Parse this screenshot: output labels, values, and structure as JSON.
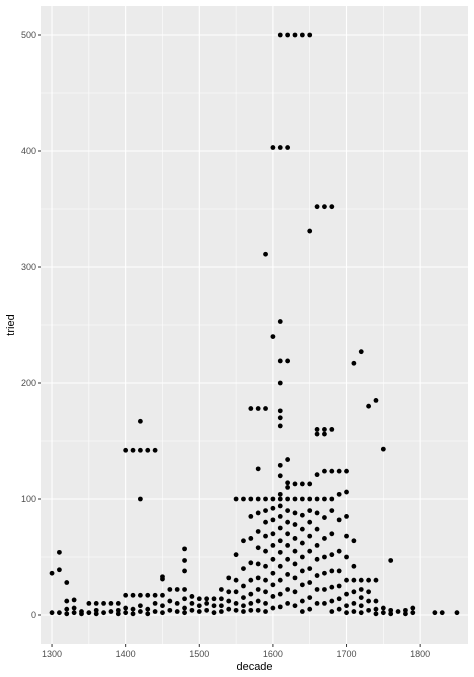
{
  "chart_data": {
    "type": "scatter",
    "xlabel": "decade",
    "ylabel": "tried",
    "xlim": [
      1285,
      1865
    ],
    "ylim": [
      -25,
      525
    ],
    "xticks": [
      1300,
      1400,
      1500,
      1600,
      1700,
      1800
    ],
    "yticks": [
      0,
      100,
      200,
      300,
      400,
      500
    ],
    "x_tick_labels": [
      "1300",
      "1400",
      "1500",
      "1600",
      "1700",
      "1800"
    ],
    "y_tick_labels": [
      "0",
      "100",
      "200",
      "300",
      "400",
      "500"
    ],
    "grid": true,
    "legend": "none",
    "colors": {
      "panel": "#ebebeb",
      "grid": "#ffffff",
      "point": "#000000"
    },
    "points": [
      [
        1300,
        36
      ],
      [
        1300,
        2
      ],
      [
        1310,
        54
      ],
      [
        1310,
        39
      ],
      [
        1310,
        2
      ],
      [
        1320,
        28
      ],
      [
        1320,
        12
      ],
      [
        1320,
        5
      ],
      [
        1320,
        1
      ],
      [
        1330,
        13
      ],
      [
        1330,
        6
      ],
      [
        1330,
        2
      ],
      [
        1340,
        3
      ],
      [
        1340,
        1
      ],
      [
        1350,
        10
      ],
      [
        1350,
        2
      ],
      [
        1360,
        10
      ],
      [
        1360,
        4
      ],
      [
        1360,
        1
      ],
      [
        1370,
        10
      ],
      [
        1370,
        2
      ],
      [
        1380,
        10
      ],
      [
        1380,
        3
      ],
      [
        1390,
        10
      ],
      [
        1390,
        4
      ],
      [
        1390,
        1
      ],
      [
        1400,
        142
      ],
      [
        1400,
        17
      ],
      [
        1400,
        6
      ],
      [
        1400,
        2
      ],
      [
        1410,
        142
      ],
      [
        1410,
        17
      ],
      [
        1410,
        5
      ],
      [
        1410,
        1
      ],
      [
        1420,
        167
      ],
      [
        1420,
        142
      ],
      [
        1420,
        100
      ],
      [
        1420,
        17
      ],
      [
        1420,
        8
      ],
      [
        1420,
        3
      ],
      [
        1430,
        142
      ],
      [
        1430,
        17
      ],
      [
        1430,
        5
      ],
      [
        1430,
        1
      ],
      [
        1440,
        142
      ],
      [
        1440,
        17
      ],
      [
        1440,
        10
      ],
      [
        1440,
        3
      ],
      [
        1450,
        33
      ],
      [
        1450,
        31
      ],
      [
        1450,
        17
      ],
      [
        1450,
        8
      ],
      [
        1450,
        2
      ],
      [
        1460,
        22
      ],
      [
        1460,
        12
      ],
      [
        1460,
        4
      ],
      [
        1470,
        22
      ],
      [
        1470,
        10
      ],
      [
        1470,
        3
      ],
      [
        1480,
        57
      ],
      [
        1480,
        47
      ],
      [
        1480,
        38
      ],
      [
        1480,
        22
      ],
      [
        1480,
        14
      ],
      [
        1480,
        6
      ],
      [
        1480,
        2
      ],
      [
        1490,
        16
      ],
      [
        1490,
        10
      ],
      [
        1490,
        4
      ],
      [
        1500,
        14
      ],
      [
        1500,
        8
      ],
      [
        1500,
        3
      ],
      [
        1510,
        14
      ],
      [
        1510,
        10
      ],
      [
        1510,
        4
      ],
      [
        1520,
        14
      ],
      [
        1520,
        8
      ],
      [
        1520,
        2
      ],
      [
        1530,
        22
      ],
      [
        1530,
        14
      ],
      [
        1530,
        8
      ],
      [
        1530,
        3
      ],
      [
        1540,
        32
      ],
      [
        1540,
        20
      ],
      [
        1540,
        12
      ],
      [
        1540,
        5
      ],
      [
        1550,
        100
      ],
      [
        1550,
        52
      ],
      [
        1550,
        30
      ],
      [
        1550,
        20
      ],
      [
        1550,
        10
      ],
      [
        1550,
        4
      ],
      [
        1560,
        100
      ],
      [
        1560,
        64
      ],
      [
        1560,
        40
      ],
      [
        1560,
        25
      ],
      [
        1560,
        15
      ],
      [
        1560,
        8
      ],
      [
        1560,
        3
      ],
      [
        1570,
        178
      ],
      [
        1570,
        100
      ],
      [
        1570,
        85
      ],
      [
        1570,
        66
      ],
      [
        1570,
        45
      ],
      [
        1570,
        30
      ],
      [
        1570,
        18
      ],
      [
        1570,
        10
      ],
      [
        1570,
        4
      ],
      [
        1580,
        178
      ],
      [
        1580,
        126
      ],
      [
        1580,
        100
      ],
      [
        1580,
        88
      ],
      [
        1580,
        72
      ],
      [
        1580,
        58
      ],
      [
        1580,
        44
      ],
      [
        1580,
        32
      ],
      [
        1580,
        22
      ],
      [
        1580,
        12
      ],
      [
        1580,
        4
      ],
      [
        1590,
        311
      ],
      [
        1590,
        178
      ],
      [
        1590,
        100
      ],
      [
        1590,
        90
      ],
      [
        1590,
        80
      ],
      [
        1590,
        68
      ],
      [
        1590,
        55
      ],
      [
        1590,
        42
      ],
      [
        1590,
        30
      ],
      [
        1590,
        20
      ],
      [
        1590,
        10
      ],
      [
        1590,
        3
      ],
      [
        1600,
        403
      ],
      [
        1600,
        240
      ],
      [
        1600,
        100
      ],
      [
        1600,
        92
      ],
      [
        1600,
        82
      ],
      [
        1600,
        70
      ],
      [
        1600,
        60
      ],
      [
        1600,
        48
      ],
      [
        1600,
        36
      ],
      [
        1600,
        26
      ],
      [
        1600,
        16
      ],
      [
        1600,
        6
      ],
      [
        1610,
        500
      ],
      [
        1610,
        403
      ],
      [
        1610,
        253
      ],
      [
        1610,
        219
      ],
      [
        1610,
        200
      ],
      [
        1610,
        176
      ],
      [
        1610,
        170
      ],
      [
        1610,
        163
      ],
      [
        1610,
        129
      ],
      [
        1610,
        120
      ],
      [
        1610,
        104
      ],
      [
        1610,
        100
      ],
      [
        1610,
        94
      ],
      [
        1610,
        85
      ],
      [
        1610,
        75
      ],
      [
        1610,
        64
      ],
      [
        1610,
        54
      ],
      [
        1610,
        42
      ],
      [
        1610,
        30
      ],
      [
        1610,
        18
      ],
      [
        1610,
        7
      ],
      [
        1620,
        500
      ],
      [
        1620,
        403
      ],
      [
        1620,
        219
      ],
      [
        1620,
        134
      ],
      [
        1620,
        114
      ],
      [
        1620,
        110
      ],
      [
        1620,
        100
      ],
      [
        1620,
        90
      ],
      [
        1620,
        80
      ],
      [
        1620,
        70
      ],
      [
        1620,
        60
      ],
      [
        1620,
        48
      ],
      [
        1620,
        35
      ],
      [
        1620,
        22
      ],
      [
        1620,
        10
      ],
      [
        1630,
        500
      ],
      [
        1630,
        113
      ],
      [
        1630,
        100
      ],
      [
        1630,
        88
      ],
      [
        1630,
        78
      ],
      [
        1630,
        66
      ],
      [
        1630,
        55
      ],
      [
        1630,
        44
      ],
      [
        1630,
        32
      ],
      [
        1630,
        20
      ],
      [
        1630,
        8
      ],
      [
        1640,
        500
      ],
      [
        1640,
        113
      ],
      [
        1640,
        100
      ],
      [
        1640,
        86
      ],
      [
        1640,
        74
      ],
      [
        1640,
        62
      ],
      [
        1640,
        50
      ],
      [
        1640,
        38
      ],
      [
        1640,
        26
      ],
      [
        1640,
        12
      ],
      [
        1640,
        3
      ],
      [
        1650,
        500
      ],
      [
        1650,
        331
      ],
      [
        1650,
        113
      ],
      [
        1650,
        100
      ],
      [
        1650,
        90
      ],
      [
        1650,
        80
      ],
      [
        1650,
        68
      ],
      [
        1650,
        55
      ],
      [
        1650,
        40
      ],
      [
        1650,
        28
      ],
      [
        1650,
        15
      ],
      [
        1650,
        5
      ],
      [
        1660,
        352
      ],
      [
        1660,
        160
      ],
      [
        1660,
        156
      ],
      [
        1660,
        121
      ],
      [
        1660,
        100
      ],
      [
        1660,
        88
      ],
      [
        1660,
        74
      ],
      [
        1660,
        60
      ],
      [
        1660,
        48
      ],
      [
        1660,
        34
      ],
      [
        1660,
        22
      ],
      [
        1660,
        10
      ],
      [
        1670,
        352
      ],
      [
        1670,
        160
      ],
      [
        1670,
        156
      ],
      [
        1670,
        124
      ],
      [
        1670,
        100
      ],
      [
        1670,
        84
      ],
      [
        1670,
        66
      ],
      [
        1670,
        50
      ],
      [
        1670,
        36
      ],
      [
        1670,
        22
      ],
      [
        1670,
        10
      ],
      [
        1680,
        352
      ],
      [
        1680,
        160
      ],
      [
        1680,
        124
      ],
      [
        1680,
        100
      ],
      [
        1680,
        90
      ],
      [
        1680,
        70
      ],
      [
        1680,
        52
      ],
      [
        1680,
        38
      ],
      [
        1680,
        24
      ],
      [
        1680,
        12
      ],
      [
        1680,
        3
      ],
      [
        1690,
        124
      ],
      [
        1690,
        104
      ],
      [
        1690,
        82
      ],
      [
        1690,
        55
      ],
      [
        1690,
        38
      ],
      [
        1690,
        25
      ],
      [
        1690,
        14
      ],
      [
        1690,
        5
      ],
      [
        1700,
        124
      ],
      [
        1700,
        106
      ],
      [
        1700,
        85
      ],
      [
        1700,
        68
      ],
      [
        1700,
        50
      ],
      [
        1700,
        30
      ],
      [
        1700,
        18
      ],
      [
        1700,
        8
      ],
      [
        1700,
        2
      ],
      [
        1710,
        217
      ],
      [
        1710,
        64
      ],
      [
        1710,
        42
      ],
      [
        1710,
        30
      ],
      [
        1710,
        20
      ],
      [
        1710,
        10
      ],
      [
        1710,
        3
      ],
      [
        1720,
        227
      ],
      [
        1720,
        30
      ],
      [
        1720,
        22
      ],
      [
        1720,
        15
      ],
      [
        1720,
        8
      ],
      [
        1720,
        2
      ],
      [
        1730,
        180
      ],
      [
        1730,
        30
      ],
      [
        1730,
        20
      ],
      [
        1730,
        12
      ],
      [
        1730,
        4
      ],
      [
        1740,
        185
      ],
      [
        1740,
        30
      ],
      [
        1740,
        12
      ],
      [
        1740,
        5
      ],
      [
        1740,
        1
      ],
      [
        1750,
        143
      ],
      [
        1750,
        6
      ],
      [
        1750,
        2
      ],
      [
        1760,
        47
      ],
      [
        1760,
        4
      ],
      [
        1760,
        1
      ],
      [
        1770,
        3
      ],
      [
        1780,
        4
      ],
      [
        1780,
        1
      ],
      [
        1790,
        6
      ],
      [
        1790,
        2
      ],
      [
        1820,
        2
      ],
      [
        1830,
        2
      ],
      [
        1850,
        2
      ]
    ]
  }
}
